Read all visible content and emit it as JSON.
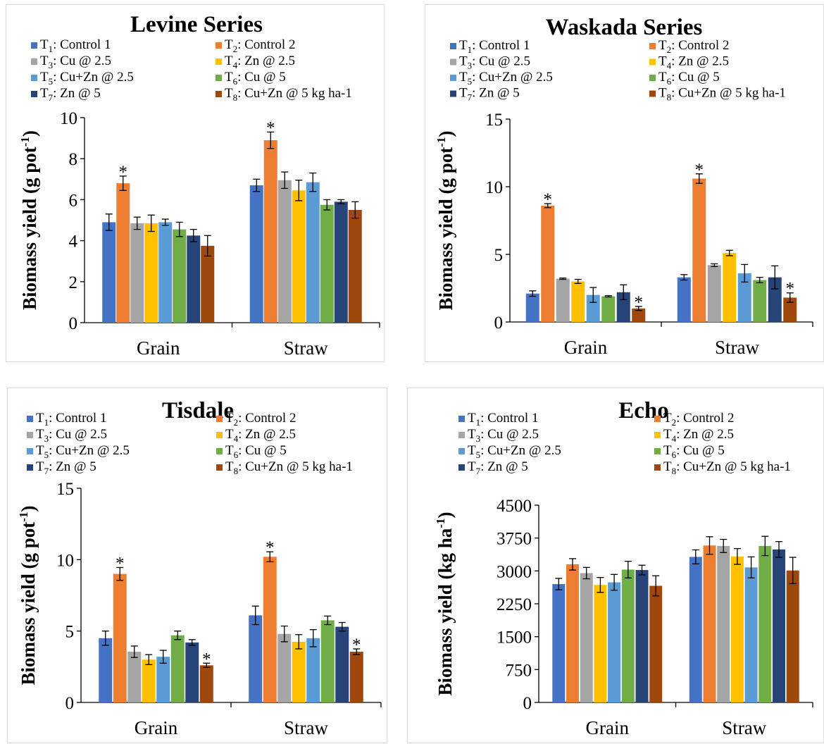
{
  "legend": [
    {
      "sym": "T",
      "sub": "1",
      "text": ": Control 1"
    },
    {
      "sym": "T",
      "sub": "2",
      "text": ": Control 2"
    },
    {
      "sym": "T",
      "sub": "3",
      "text": ": Cu @ 2.5"
    },
    {
      "sym": "T",
      "sub": "4",
      "text": ": Zn @ 2.5"
    },
    {
      "sym": "T",
      "sub": "5",
      "text": ": Cu+Zn @ 2.5"
    },
    {
      "sym": "T",
      "sub": "6",
      "text": ": Cu @ 5"
    },
    {
      "sym": "T",
      "sub": "7",
      "text": ": Zn @ 5"
    },
    {
      "sym": "T",
      "sub": "8",
      "text": ": Cu+Zn @ 5 kg ha-1"
    }
  ],
  "colors": [
    "#4472c4",
    "#ed7d31",
    "#a5a5a5",
    "#ffc000",
    "#5b9bd5",
    "#70ad47",
    "#264478",
    "#9e480e"
  ],
  "chart_data": [
    {
      "type": "bar",
      "title": "Levine Series",
      "ylabel": {
        "main": "Biomass yield (g pot",
        "sup": "-1",
        "end": ")"
      },
      "categories": [
        "Grain",
        "Straw"
      ],
      "ylim": [
        0,
        10
      ],
      "yticks": [
        0,
        2,
        4,
        6,
        8,
        10
      ],
      "series": [
        {
          "values": [
            4.9,
            6.7
          ],
          "errors": [
            0.4,
            0.3
          ]
        },
        {
          "values": [
            6.8,
            8.9
          ],
          "errors": [
            0.35,
            0.4
          ]
        },
        {
          "values": [
            4.85,
            6.95
          ],
          "errors": [
            0.3,
            0.4
          ]
        },
        {
          "values": [
            4.85,
            6.45
          ],
          "errors": [
            0.4,
            0.5
          ]
        },
        {
          "values": [
            4.9,
            6.85
          ],
          "errors": [
            0.15,
            0.45
          ]
        },
        {
          "values": [
            4.55,
            5.75
          ],
          "errors": [
            0.35,
            0.25
          ]
        },
        {
          "values": [
            4.25,
            5.9
          ],
          "errors": [
            0.3,
            0.1
          ]
        },
        {
          "values": [
            3.75,
            5.5
          ],
          "errors": [
            0.5,
            0.4
          ]
        }
      ],
      "significant": [
        [
          1,
          0
        ],
        [
          1,
          1
        ]
      ]
    },
    {
      "type": "bar",
      "title": "Waskada Series",
      "ylabel": {
        "main": "Biomass yield (g pot",
        "sup": "-1",
        "end": ")"
      },
      "categories": [
        "Grain",
        "Straw"
      ],
      "ylim": [
        0,
        15
      ],
      "yticks": [
        0,
        5,
        10,
        15
      ],
      "series": [
        {
          "values": [
            2.1,
            3.3
          ],
          "errors": [
            0.2,
            0.2
          ]
        },
        {
          "values": [
            8.6,
            10.6
          ],
          "errors": [
            0.15,
            0.35
          ]
        },
        {
          "values": [
            3.2,
            4.2
          ],
          "errors": [
            0.05,
            0.1
          ]
        },
        {
          "values": [
            3.0,
            5.1
          ],
          "errors": [
            0.15,
            0.2
          ]
        },
        {
          "values": [
            2.0,
            3.6
          ],
          "errors": [
            0.55,
            0.65
          ]
        },
        {
          "values": [
            1.9,
            3.1
          ],
          "errors": [
            0.05,
            0.2
          ]
        },
        {
          "values": [
            2.2,
            3.3
          ],
          "errors": [
            0.55,
            0.85
          ]
        },
        {
          "values": [
            1.0,
            1.8
          ],
          "errors": [
            0.15,
            0.35
          ]
        }
      ],
      "significant": [
        [
          1,
          0
        ],
        [
          1,
          1
        ],
        [
          7,
          0
        ],
        [
          7,
          1
        ]
      ]
    },
    {
      "type": "bar",
      "title": "Tisdale",
      "ylabel": {
        "main": "Biomass yield (g pot",
        "sup": "-1",
        "end": ")"
      },
      "categories": [
        "Grain",
        "Straw"
      ],
      "ylim": [
        0,
        15
      ],
      "yticks": [
        0,
        5,
        10,
        15
      ],
      "series": [
        {
          "values": [
            4.5,
            6.1
          ],
          "errors": [
            0.5,
            0.65
          ]
        },
        {
          "values": [
            9.0,
            10.2
          ],
          "errors": [
            0.45,
            0.35
          ]
        },
        {
          "values": [
            3.55,
            4.8
          ],
          "errors": [
            0.4,
            0.55
          ]
        },
        {
          "values": [
            3.0,
            4.25
          ],
          "errors": [
            0.35,
            0.5
          ]
        },
        {
          "values": [
            3.2,
            4.5
          ],
          "errors": [
            0.45,
            0.6
          ]
        },
        {
          "values": [
            4.7,
            5.75
          ],
          "errors": [
            0.3,
            0.3
          ]
        },
        {
          "values": [
            4.2,
            5.3
          ],
          "errors": [
            0.2,
            0.3
          ]
        },
        {
          "values": [
            2.6,
            3.55
          ],
          "errors": [
            0.15,
            0.2
          ]
        }
      ],
      "significant": [
        [
          1,
          0
        ],
        [
          1,
          1
        ],
        [
          7,
          0
        ],
        [
          7,
          1
        ]
      ]
    },
    {
      "type": "bar",
      "title": "Echo",
      "ylabel": {
        "main": "Biomass yield (kg ha",
        "sup": "-1",
        "end": ")"
      },
      "categories": [
        "Grain",
        "Straw"
      ],
      "ylim": [
        0,
        4500
      ],
      "yticks": [
        0,
        750,
        1500,
        2250,
        3000,
        3750,
        4500
      ],
      "series": [
        {
          "values": [
            2700,
            3320
          ],
          "errors": [
            130,
            160
          ]
        },
        {
          "values": [
            3150,
            3580
          ],
          "errors": [
            130,
            200
          ]
        },
        {
          "values": [
            2950,
            3570
          ],
          "errors": [
            130,
            150
          ]
        },
        {
          "values": [
            2680,
            3330
          ],
          "errors": [
            170,
            180
          ]
        },
        {
          "values": [
            2740,
            3080
          ],
          "errors": [
            180,
            240
          ]
        },
        {
          "values": [
            3030,
            3570
          ],
          "errors": [
            190,
            220
          ]
        },
        {
          "values": [
            3020,
            3490
          ],
          "errors": [
            110,
            180
          ]
        },
        {
          "values": [
            2660,
            3010
          ],
          "errors": [
            230,
            300
          ]
        }
      ],
      "significant": []
    }
  ]
}
